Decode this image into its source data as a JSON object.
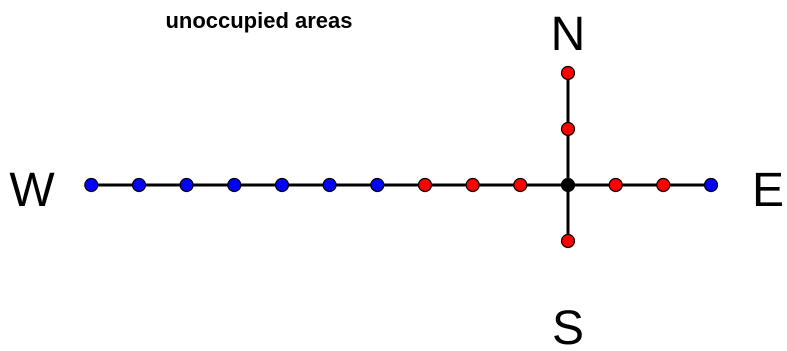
{
  "caption": "unoccupied areas",
  "directions": {
    "north": "N",
    "south": "S",
    "east": "E",
    "west": "W"
  },
  "colors": {
    "unoccupied": "#0000ff",
    "occupied": "#ff0000",
    "center": "#000000",
    "line": "#000000"
  },
  "arms": {
    "west": [
      "unoccupied",
      "unoccupied",
      "unoccupied",
      "unoccupied",
      "unoccupied",
      "unoccupied",
      "unoccupied",
      "occupied",
      "occupied",
      "occupied"
    ],
    "east": [
      "occupied",
      "occupied",
      "unoccupied"
    ],
    "north": [
      "occupied",
      "occupied"
    ],
    "south": [
      "occupied"
    ]
  }
}
